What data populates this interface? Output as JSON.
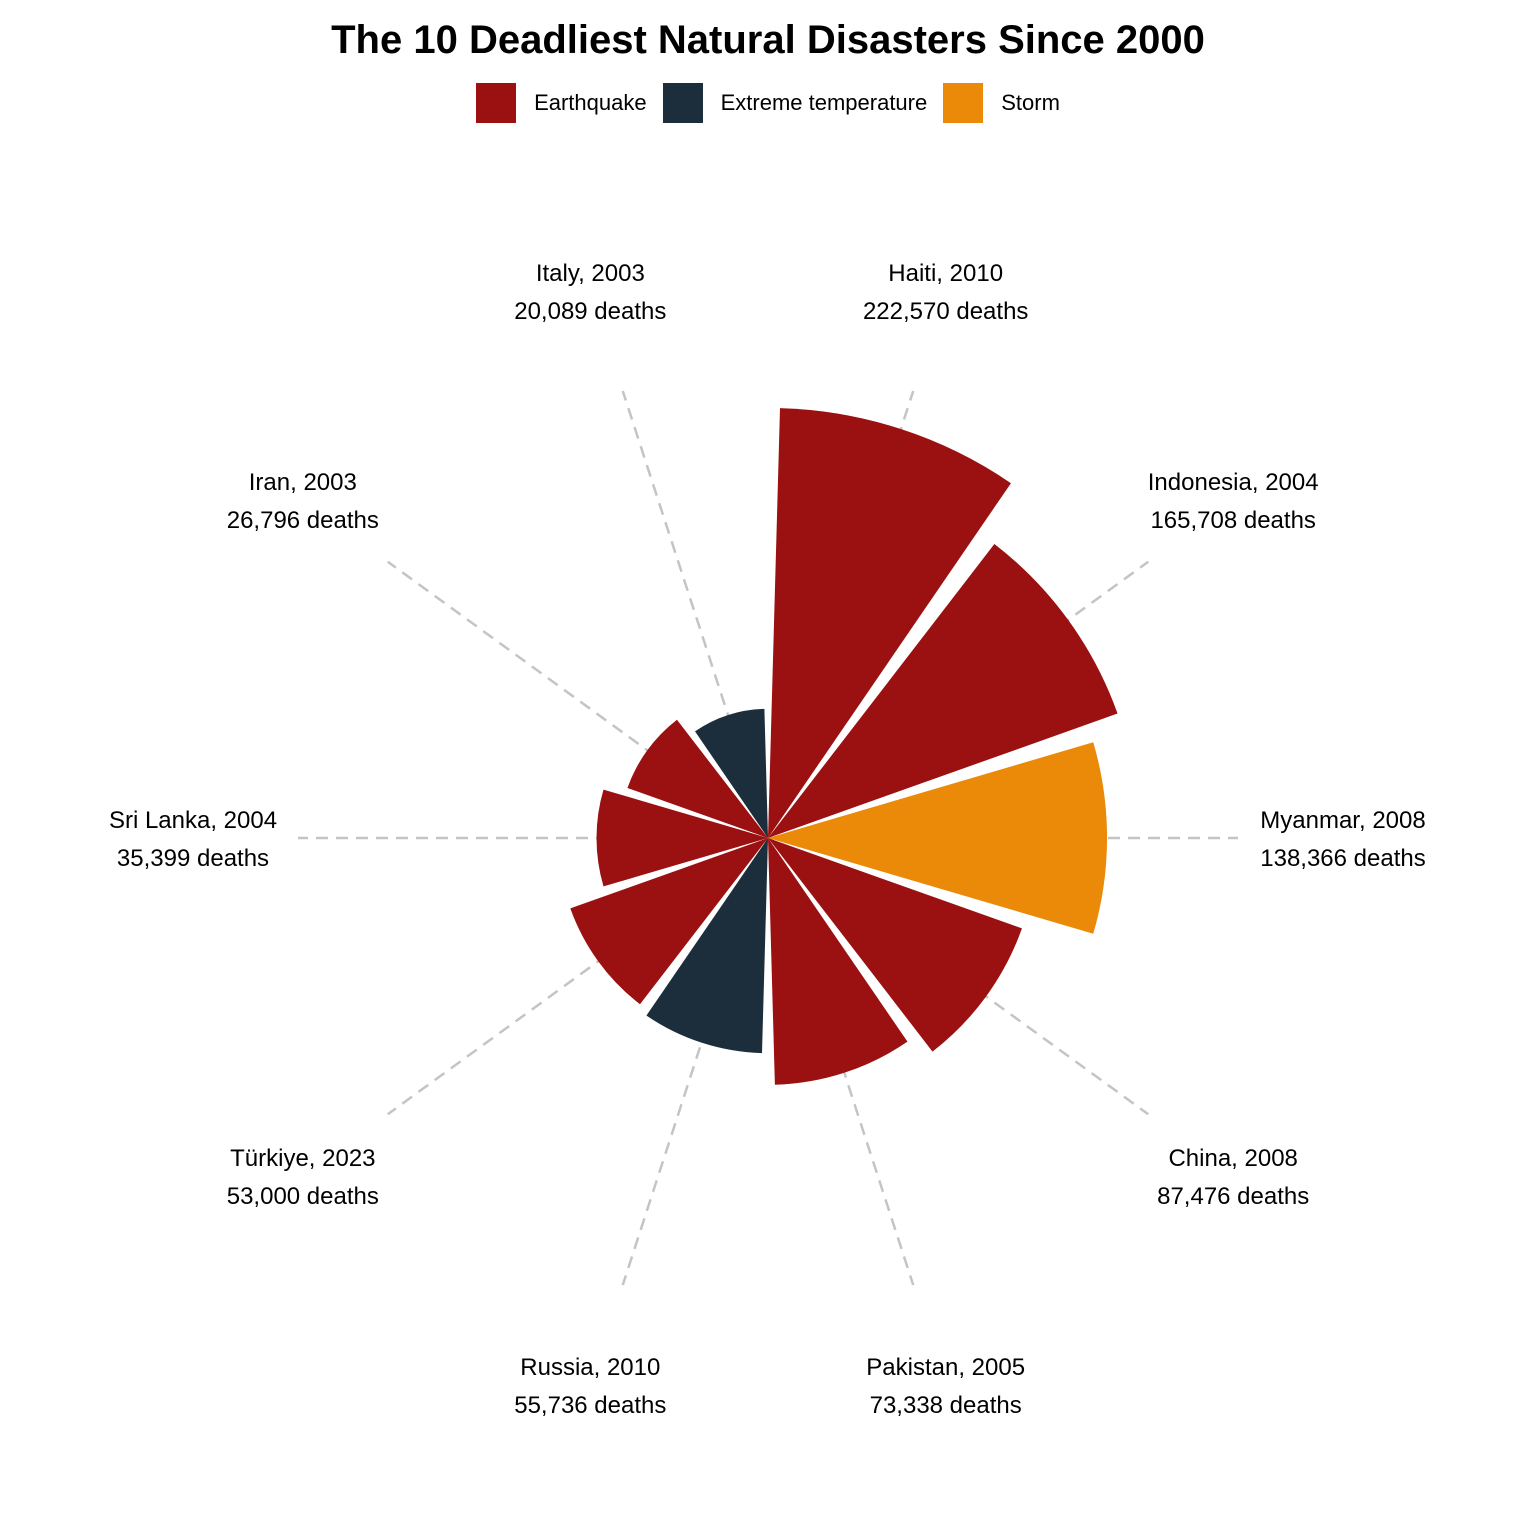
{
  "chart_data": {
    "type": "polar-bar",
    "title": "The 10 Deadliest Natural Disasters Since 2000",
    "legend": {
      "placement": "top",
      "entries": [
        {
          "name": "Earthquake",
          "color": "#9b1010"
        },
        {
          "name": "Extreme temperature",
          "color": "#1c2e3c"
        },
        {
          "name": "Storm",
          "color": "#ea8a08"
        }
      ]
    },
    "grid": "dashed-radial",
    "items": [
      {
        "place": "Haiti, 2010",
        "deaths_label": "222,570 deaths",
        "deaths": 222570,
        "type": "Earthquake"
      },
      {
        "place": "Indonesia, 2004",
        "deaths_label": "165,708 deaths",
        "deaths": 165708,
        "type": "Earthquake"
      },
      {
        "place": "Myanmar, 2008",
        "deaths_label": "138,366 deaths",
        "deaths": 138366,
        "type": "Storm"
      },
      {
        "place": "China, 2008",
        "deaths_label": "87,476 deaths",
        "deaths": 87476,
        "type": "Earthquake"
      },
      {
        "place": "Pakistan, 2005",
        "deaths_label": "73,338 deaths",
        "deaths": 73338,
        "type": "Earthquake"
      },
      {
        "place": "Russia, 2010",
        "deaths_label": "55,736 deaths",
        "deaths": 55736,
        "type": "Extreme temperature"
      },
      {
        "place": "Türkiye, 2023",
        "deaths_label": "53,000 deaths",
        "deaths": 53000,
        "type": "Earthquake"
      },
      {
        "place": "Sri Lanka, 2004",
        "deaths_label": "35,399 deaths",
        "deaths": 35399,
        "type": "Earthquake"
      },
      {
        "place": "Iran, 2003",
        "deaths_label": "26,796 deaths",
        "deaths": 26796,
        "type": "Earthquake"
      },
      {
        "place": "Italy, 2003",
        "deaths_label": "20,089 deaths",
        "deaths": 20089,
        "type": "Extreme temperature"
      }
    ]
  }
}
